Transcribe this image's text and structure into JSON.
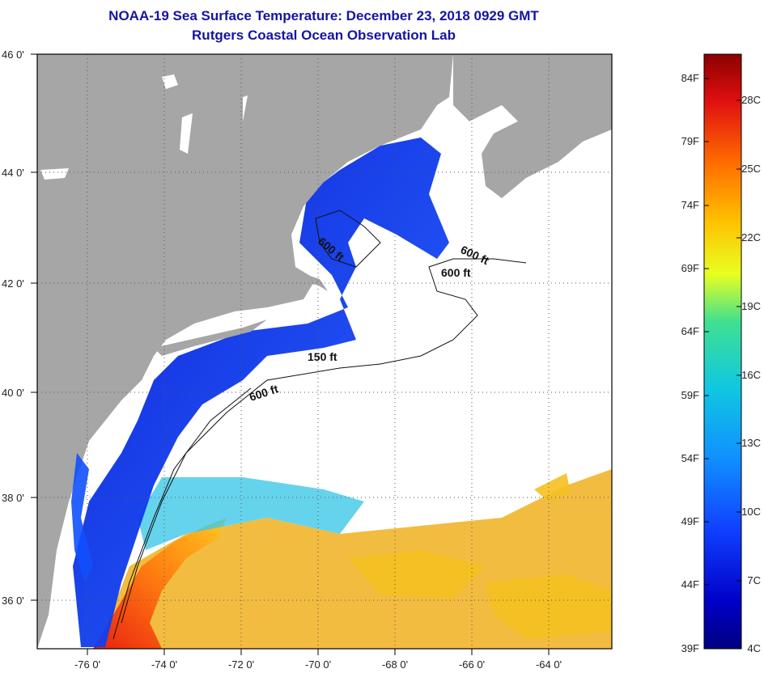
{
  "title": {
    "line1": "NOAA-19 Sea Surface Temperature:  December 23, 2018 0929 GMT",
    "line2": "Rutgers Coastal Ocean Observation Lab"
  },
  "map": {
    "lat_labels": [
      "46 0'",
      "44 0'",
      "42 0'",
      "40 0'",
      "38 0'",
      "36 0'"
    ],
    "lon_labels": [
      "-76 0'",
      "-74 0'",
      "-72 0'",
      "-70 0'",
      "-68 0'",
      "-66 0'",
      "-64 0'"
    ],
    "contour_labels": [
      "600 ft",
      "600 ft",
      "600 ft",
      "150 ft",
      "600 ft"
    ],
    "colors": {
      "land": "#a6a6a6",
      "cloud": "#ffffff",
      "frame": "#000000"
    }
  },
  "colorbar": {
    "fahrenheit_labels": [
      "84F",
      "79F",
      "74F",
      "69F",
      "64F",
      "59F",
      "54F",
      "49F",
      "44F",
      "39F"
    ],
    "celsius_labels": [
      "28C",
      "25C",
      "22C",
      "19C",
      "16C",
      "13C",
      "10C",
      "7C",
      "4C"
    ],
    "gradient": [
      "#8b0000",
      "#e01010",
      "#ff6a00",
      "#ffc000",
      "#e8ff20",
      "#40e090",
      "#10c8e0",
      "#1090ff",
      "#1040ff",
      "#0000b0",
      "#000080"
    ]
  }
}
